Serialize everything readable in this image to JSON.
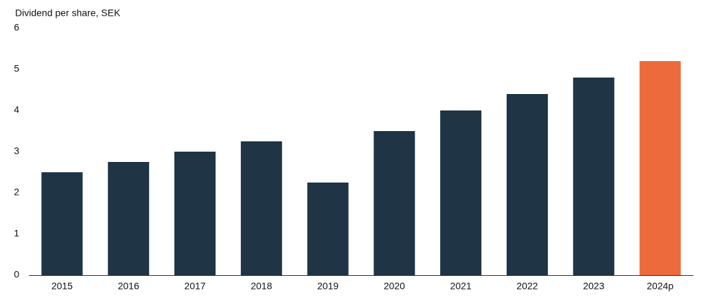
{
  "chart_data": {
    "type": "bar",
    "title": "Dividend per share, SEK",
    "categories": [
      "2015",
      "2016",
      "2017",
      "2018",
      "2019",
      "2020",
      "2021",
      "2022",
      "2023",
      "2024p"
    ],
    "values": [
      2.5,
      2.75,
      3.0,
      3.25,
      2.25,
      3.5,
      4.0,
      4.4,
      4.8,
      5.2
    ],
    "colors": [
      "#1f3444",
      "#1f3444",
      "#1f3444",
      "#1f3444",
      "#1f3444",
      "#1f3444",
      "#1f3444",
      "#1f3444",
      "#1f3444",
      "#ec6a3c"
    ],
    "ylim": [
      0,
      6
    ],
    "yticks": [
      0,
      1,
      2,
      3,
      4,
      5,
      6
    ],
    "grid": false
  }
}
